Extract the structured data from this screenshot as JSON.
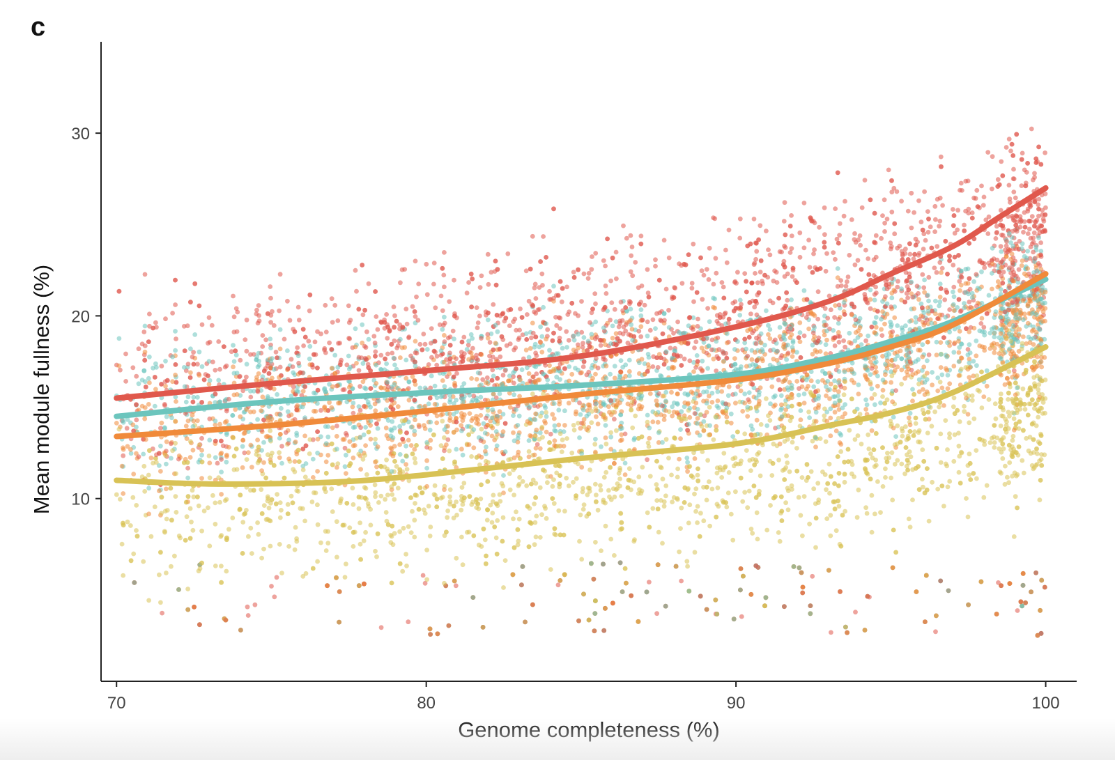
{
  "panel_label": "c",
  "chart_data": {
    "type": "scatter",
    "title": "",
    "xlabel": "Genome completeness (%)",
    "ylabel": "Mean module fullness (%)",
    "xlim": [
      69.5,
      101
    ],
    "ylim": [
      0,
      35
    ],
    "x_ticks": [
      70,
      80,
      90,
      100
    ],
    "y_ticks": [
      10,
      20,
      30
    ],
    "grid": false,
    "legend": "none",
    "series": [
      {
        "color": "#e0584c",
        "trend": [
          [
            70,
            15.5
          ],
          [
            75,
            16.3
          ],
          [
            80,
            17.0
          ],
          [
            85,
            17.8
          ],
          [
            90,
            19.4
          ],
          [
            93,
            20.8
          ],
          [
            95,
            22.3
          ],
          [
            97,
            23.8
          ],
          [
            98.5,
            25.4
          ],
          [
            100,
            27.0
          ]
        ],
        "cloud": {
          "mean": [
            16.5,
            17.5,
            18.5,
            19.5,
            22.0,
            25.0
          ],
          "spread": 4.5,
          "n": 2200
        }
      },
      {
        "color": "#6cc5bd",
        "trend": [
          [
            70,
            14.5
          ],
          [
            75,
            15.3
          ],
          [
            80,
            15.8
          ],
          [
            85,
            16.2
          ],
          [
            90,
            16.8
          ],
          [
            93,
            17.7
          ],
          [
            95,
            18.6
          ],
          [
            97,
            19.7
          ],
          [
            100,
            22.0
          ]
        ],
        "cloud": {
          "mean": [
            15.0,
            15.5,
            16.0,
            16.5,
            18.0,
            21.0
          ],
          "spread": 3.5,
          "n": 1500
        }
      },
      {
        "color": "#f08a3a",
        "trend": [
          [
            70,
            13.4
          ],
          [
            75,
            14.0
          ],
          [
            80,
            14.8
          ],
          [
            85,
            15.7
          ],
          [
            90,
            16.5
          ],
          [
            93,
            17.4
          ],
          [
            95,
            18.3
          ],
          [
            97,
            19.5
          ],
          [
            100,
            22.3
          ]
        ],
        "cloud": {
          "mean": [
            13.5,
            14.5,
            15.0,
            16.0,
            17.5,
            20.0
          ],
          "spread": 3.5,
          "n": 1500
        }
      },
      {
        "color": "#d8c255",
        "trend": [
          [
            70,
            11.0
          ],
          [
            73,
            10.8
          ],
          [
            77,
            10.9
          ],
          [
            80,
            11.3
          ],
          [
            85,
            12.2
          ],
          [
            90,
            13.0
          ],
          [
            93,
            14.0
          ],
          [
            95,
            14.7
          ],
          [
            97,
            15.8
          ],
          [
            100,
            18.3
          ]
        ],
        "cloud": {
          "mean": [
            9.5,
            10.0,
            10.5,
            11.5,
            12.5,
            15.0
          ],
          "spread": 4.0,
          "n": 1800
        }
      }
    ]
  }
}
